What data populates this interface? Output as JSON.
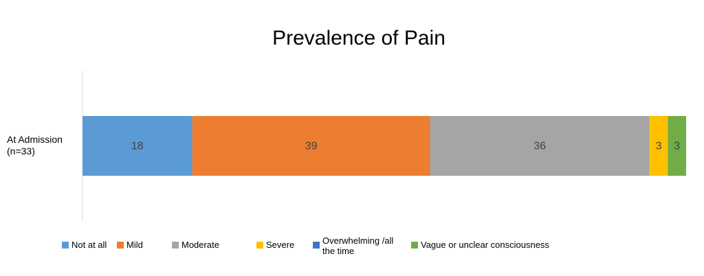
{
  "chart_data": {
    "type": "stacked-bar-horizontal",
    "title": "Prevalence of Pain",
    "categories": [
      "At Admission (n=33)"
    ],
    "xlim": [
      0,
      99
    ],
    "series": [
      {
        "name": "Not at all",
        "color": "#5b9bd5",
        "values": [
          18
        ]
      },
      {
        "name": "Mild",
        "color": "#ed7d31",
        "values": [
          39
        ]
      },
      {
        "name": "Moderate",
        "color": "#a5a5a5",
        "values": [
          36
        ]
      },
      {
        "name": "Severe",
        "color": "#ffc000",
        "values": [
          3
        ]
      },
      {
        "name": "Overwhelming /all the time",
        "color": "#4472c4",
        "values": [
          0
        ]
      },
      {
        "name": "Vague or unclear consciousness",
        "color": "#70ad47",
        "values": [
          3
        ]
      }
    ]
  }
}
